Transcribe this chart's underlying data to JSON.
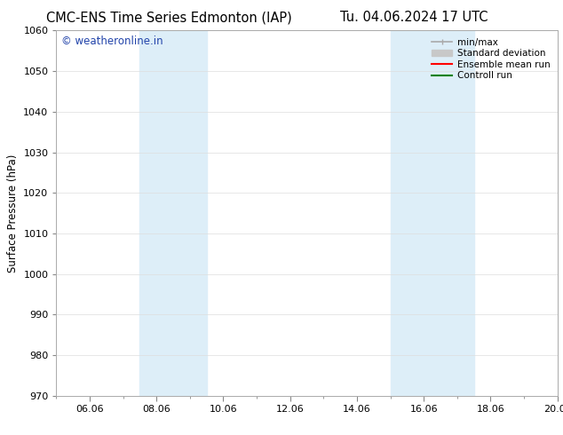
{
  "title_left": "CMC-ENS Time Series Edmonton (IAP)",
  "title_right": "Tu. 04.06.2024 17 UTC",
  "ylabel": "Surface Pressure (hPa)",
  "ylim": [
    970,
    1060
  ],
  "yticks": [
    970,
    980,
    990,
    1000,
    1010,
    1020,
    1030,
    1040,
    1050,
    1060
  ],
  "xlim": [
    0.0,
    15.0
  ],
  "xtick_labels": [
    "06.06",
    "08.06",
    "10.06",
    "12.06",
    "14.06",
    "16.06",
    "18.06",
    "20.06"
  ],
  "xtick_positions": [
    1.0,
    3.0,
    5.0,
    7.0,
    9.0,
    11.0,
    13.0,
    15.0
  ],
  "shaded_regions": [
    {
      "x_start": 2.5,
      "x_end": 4.5
    },
    {
      "x_start": 10.0,
      "x_end": 12.5
    }
  ],
  "shaded_color": "#ddeef8",
  "background_color": "#ffffff",
  "watermark_text": "© weatheronline.in",
  "watermark_color": "#2244aa",
  "legend_items": [
    {
      "label": "min/max",
      "color": "#aaaaaa",
      "lw": 1.2,
      "style": "minmax"
    },
    {
      "label": "Standard deviation",
      "color": "#c8c8c8",
      "lw": 7,
      "style": "bar"
    },
    {
      "label": "Ensemble mean run",
      "color": "#ff0000",
      "lw": 1.5,
      "style": "line"
    },
    {
      "label": "Controll run",
      "color": "#008000",
      "lw": 1.5,
      "style": "line"
    }
  ],
  "grid_color": "#dddddd",
  "title_fontsize": 10.5,
  "watermark_fontsize": 8.5,
  "axis_label_fontsize": 8.5,
  "tick_fontsize": 8,
  "legend_fontsize": 7.5
}
